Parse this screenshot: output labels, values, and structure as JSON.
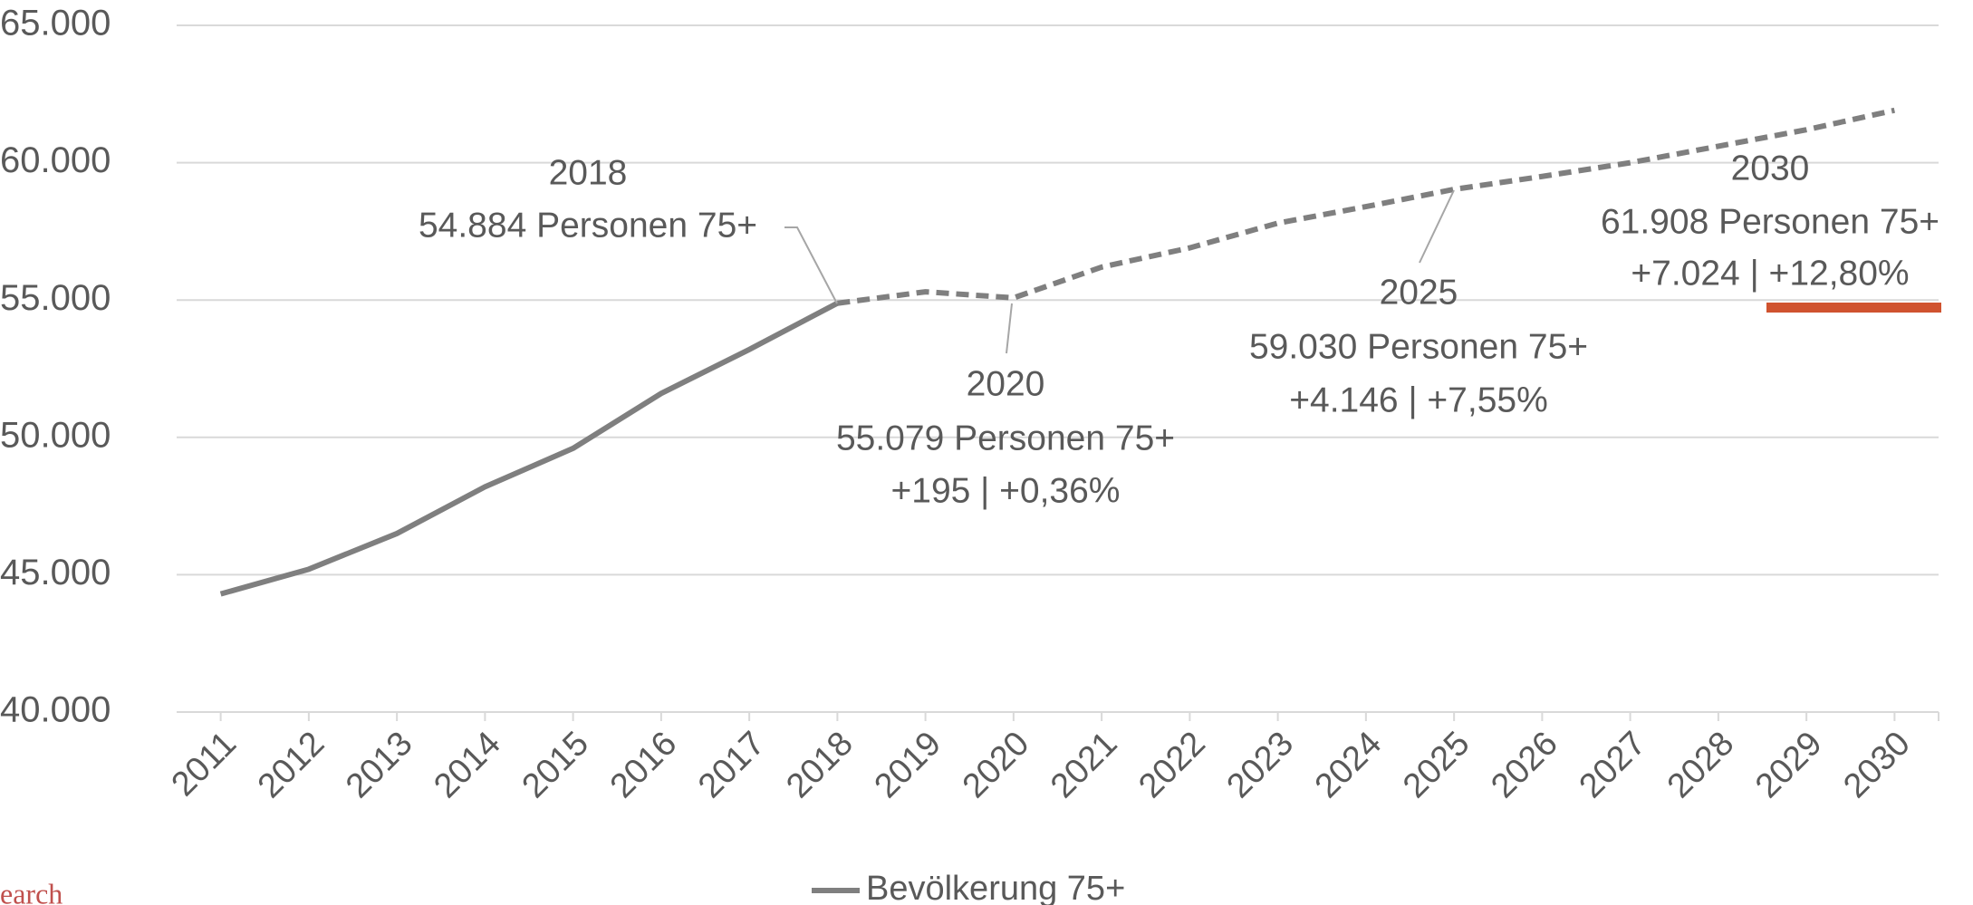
{
  "chart_data": {
    "type": "line",
    "categories": [
      "2011",
      "2012",
      "2013",
      "2014",
      "2015",
      "2016",
      "2017",
      "2018",
      "2019",
      "2020",
      "2021",
      "2022",
      "2023",
      "2024",
      "2025",
      "2026",
      "2027",
      "2028",
      "2029",
      "2030"
    ],
    "series": [
      {
        "name": "Bevölkerung 75+",
        "color": "#7f7f7f",
        "values": [
          44300,
          45200,
          46500,
          48200,
          49600,
          51600,
          53200,
          54884,
          55300,
          55079,
          56200,
          56900,
          57800,
          58400,
          59030,
          59500,
          60000,
          60600,
          61200,
          61908
        ]
      }
    ],
    "dashed_from": "2018",
    "ylim": [
      40000,
      65000
    ],
    "yticks": [
      {
        "value": 40000,
        "label": "40.000"
      },
      {
        "value": 45000,
        "label": "45.000"
      },
      {
        "value": 50000,
        "label": "50.000"
      },
      {
        "value": 55000,
        "label": "55.000"
      },
      {
        "value": 60000,
        "label": "60.000"
      },
      {
        "value": 65000,
        "label": "65.000"
      }
    ],
    "grid": true,
    "legend": "bottom",
    "annotations": [
      {
        "lines": [
          "2018",
          "54.884 Personen 75+"
        ]
      },
      {
        "lines": [
          "2020",
          "55.079 Personen 75+",
          "+195 | +0,36%"
        ]
      },
      {
        "lines": [
          "2025",
          "59.030 Personen 75+",
          "+4.146 | +7,55%"
        ]
      },
      {
        "lines": [
          "2030",
          "61.908 Personen 75+",
          "+7.024 | +12,80%"
        ]
      }
    ]
  },
  "footer_fragment": "earch"
}
